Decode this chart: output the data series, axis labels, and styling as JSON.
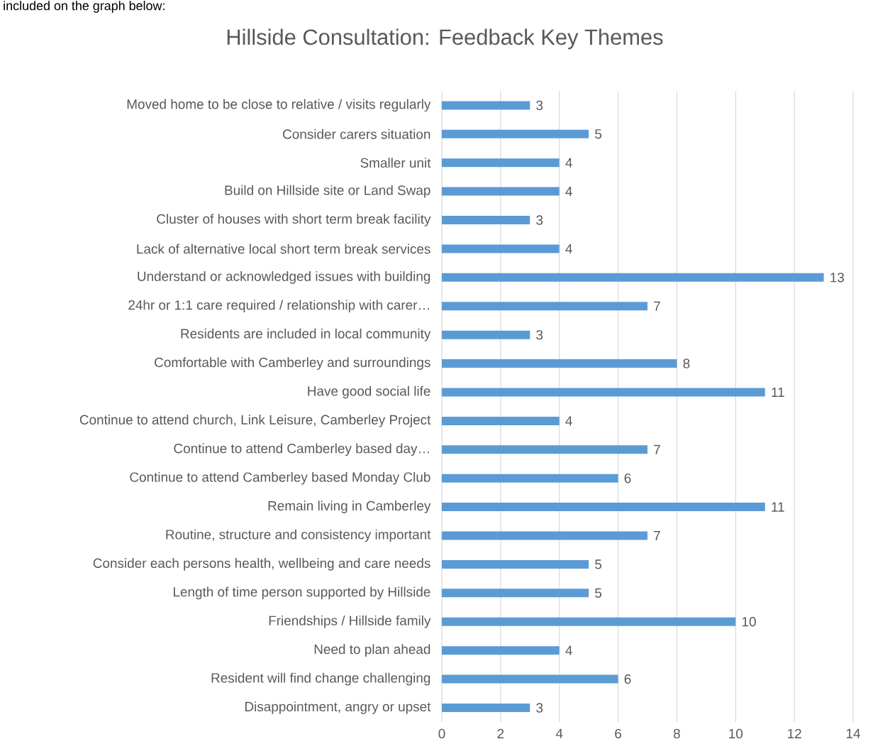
{
  "chart_data": {
    "type": "bar",
    "orientation": "horizontal",
    "title": "Hillside Consultation: Feedback Key Themes",
    "annotations": [
      "included on the graph below:"
    ],
    "categories": [
      "Moved home to be close to relative / visits regularly",
      "Consider carers  situation",
      "Smaller unit",
      "Build on Hillside site or Land Swap",
      "Cluster of houses with short term break facility",
      "Lack of alternative local short term break services",
      "Understand or acknowledged issues with building",
      "24hr or 1:1 care required / relationship with carer…",
      "Residents are included in local community",
      "Comfortable with Camberley and surroundings",
      "Have good social life",
      "Continue to attend church, Link Leisure, Camberley Project",
      "Continue to attend Camberley based day…",
      "Continue to attend Camberley based Monday Club",
      "Remain living in Camberley",
      "Routine, structure and consistency important",
      "Consider each persons health, wellbeing and care needs",
      "Length of time person supported by Hillside",
      "Friendships / Hillside family",
      "Need to plan ahead",
      "Resident will find change challenging",
      "Disappointment, angry or upset"
    ],
    "values": [
      3,
      5,
      4,
      4,
      3,
      4,
      13,
      7,
      3,
      8,
      11,
      4,
      7,
      6,
      11,
      7,
      5,
      5,
      10,
      4,
      6,
      3
    ],
    "color": "#5b9bd5",
    "xlim": [
      0,
      14
    ],
    "xticks": [
      0,
      2,
      4,
      6,
      8,
      10,
      12,
      14
    ],
    "grid": "x",
    "data_labels": true
  }
}
